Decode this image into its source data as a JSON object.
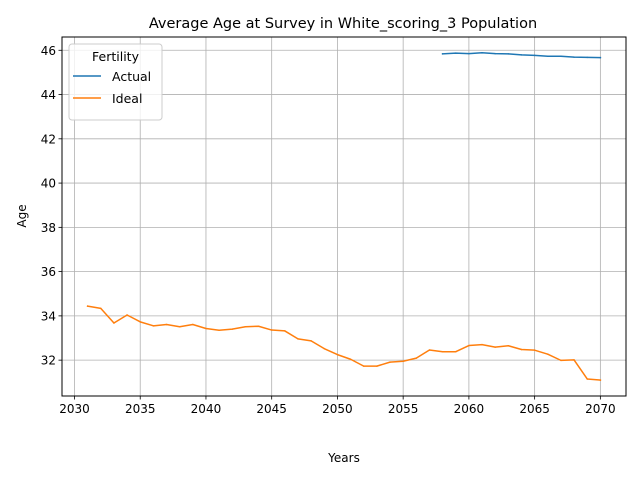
{
  "chart_data": {
    "type": "line",
    "title": "Average Age at Survey in White_scoring_3 Population",
    "xlabel": "Years",
    "ylabel": "Age",
    "xlim": [
      2029.05,
      2071.95
    ],
    "ylim": [
      30.38,
      46.6
    ],
    "xticks": [
      2030,
      2035,
      2040,
      2045,
      2050,
      2055,
      2060,
      2065,
      2070
    ],
    "yticks": [
      32,
      34,
      36,
      38,
      40,
      42,
      44,
      46
    ],
    "grid": true,
    "legend": {
      "title": "Fertility",
      "position": "upper-left"
    },
    "series": [
      {
        "name": "Actual",
        "color": "#1f77b4",
        "x": [
          2058,
          2059,
          2060,
          2061,
          2062,
          2063,
          2064,
          2065,
          2066,
          2067,
          2068,
          2069,
          2070
        ],
        "values": [
          45.84,
          45.87,
          45.85,
          45.89,
          45.85,
          45.84,
          45.79,
          45.77,
          45.73,
          45.73,
          45.69,
          45.68,
          45.67
        ]
      },
      {
        "name": "Ideal",
        "color": "#ff7f0e",
        "x": [
          2031,
          2032,
          2033,
          2034,
          2035,
          2036,
          2037,
          2038,
          2039,
          2040,
          2041,
          2042,
          2043,
          2044,
          2045,
          2046,
          2047,
          2048,
          2049,
          2050,
          2051,
          2052,
          2053,
          2054,
          2055,
          2056,
          2057,
          2058,
          2059,
          2060,
          2061,
          2062,
          2063,
          2064,
          2065,
          2066,
          2067,
          2068,
          2069,
          2070
        ],
        "values": [
          34.44,
          34.34,
          33.68,
          34.04,
          33.73,
          33.55,
          33.61,
          33.51,
          33.61,
          33.43,
          33.35,
          33.4,
          33.51,
          33.53,
          33.36,
          33.32,
          32.96,
          32.87,
          32.52,
          32.25,
          32.04,
          31.73,
          31.73,
          31.91,
          31.95,
          32.09,
          32.46,
          32.38,
          32.38,
          32.66,
          32.7,
          32.59,
          32.65,
          32.48,
          32.45,
          32.27,
          31.99,
          32.01,
          31.15,
          31.1
        ]
      }
    ]
  }
}
